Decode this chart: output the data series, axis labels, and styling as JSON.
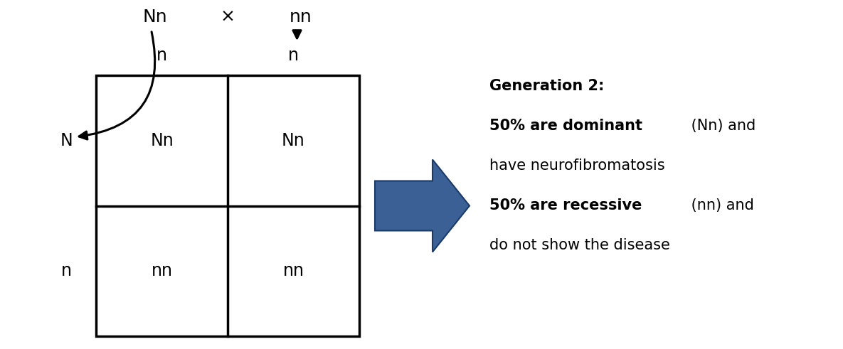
{
  "background_color": "#ffffff",
  "square_color": "#ffffff",
  "square_edge_color": "#000000",
  "square_linewidth": 2.5,
  "parent1": "Nn",
  "parent2": "nn",
  "cross_symbol": "×",
  "row_labels": [
    "N",
    "n"
  ],
  "col_labels": [
    "n",
    "n"
  ],
  "cells": [
    [
      "Nn",
      "Nn"
    ],
    [
      "nn",
      "nn"
    ]
  ],
  "arrow_color": "#3a6096",
  "arrow_edge_color": "#1a3a6a",
  "text_color": "#000000",
  "gen2_title": "Generation 2:",
  "gen2_line1_bold": "50% are dominant",
  "gen2_line1_normal": " (Nn) and",
  "gen2_line2": "have neurofibromatosis",
  "gen2_line3_bold": "50% are recessive",
  "gen2_line3_normal": " (nn) and",
  "gen2_line4": "do not show the disease",
  "font_size_labels": 17,
  "font_size_cells": 17,
  "font_size_parents": 18,
  "font_size_gen2": 15
}
